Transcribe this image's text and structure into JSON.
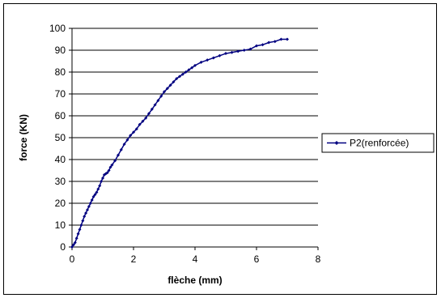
{
  "chart_data": {
    "type": "line",
    "title": "",
    "xlabel": "flèche (mm)",
    "ylabel": "force (KN)",
    "xlim": [
      0,
      8
    ],
    "ylim": [
      0,
      100
    ],
    "x_ticks": [
      0,
      2,
      4,
      6,
      8
    ],
    "y_ticks": [
      0,
      10,
      20,
      30,
      40,
      50,
      60,
      70,
      80,
      90,
      100
    ],
    "grid": "horizontal",
    "legend_position": "right",
    "series": [
      {
        "name": "P2(renforcée)",
        "color": "#000080",
        "x": [
          0,
          0.05,
          0.1,
          0.15,
          0.2,
          0.25,
          0.3,
          0.35,
          0.4,
          0.45,
          0.5,
          0.55,
          0.6,
          0.65,
          0.7,
          0.75,
          0.8,
          0.85,
          0.9,
          0.95,
          1.0,
          1.05,
          1.1,
          1.15,
          1.2,
          1.25,
          1.3,
          1.4,
          1.5,
          1.6,
          1.7,
          1.8,
          1.9,
          2.0,
          2.1,
          2.2,
          2.3,
          2.4,
          2.5,
          2.6,
          2.7,
          2.8,
          2.9,
          3.0,
          3.1,
          3.2,
          3.3,
          3.4,
          3.5,
          3.6,
          3.7,
          3.8,
          3.9,
          4.0,
          4.2,
          4.4,
          4.6,
          4.8,
          5.0,
          5.2,
          5.4,
          5.6,
          5.8,
          6.0,
          6.2,
          6.4,
          6.6,
          6.8,
          7.0
        ],
        "y": [
          0,
          1,
          2,
          4,
          6,
          8,
          10,
          12,
          14,
          15.5,
          17,
          18.5,
          20,
          21.5,
          23,
          24,
          25,
          26.5,
          28,
          30,
          31.5,
          33,
          33.5,
          34,
          35,
          36.5,
          37.5,
          39.5,
          42,
          44.5,
          47,
          49,
          51,
          52.5,
          54,
          56,
          57.5,
          59,
          61,
          63,
          65,
          67,
          69,
          71,
          72.5,
          74,
          75.5,
          77,
          78,
          79,
          80,
          81,
          82,
          83,
          84.5,
          85.5,
          86.5,
          87.5,
          88.5,
          89,
          89.5,
          90,
          90.5,
          92,
          92.5,
          93.5,
          94,
          95,
          95
        ]
      }
    ]
  }
}
